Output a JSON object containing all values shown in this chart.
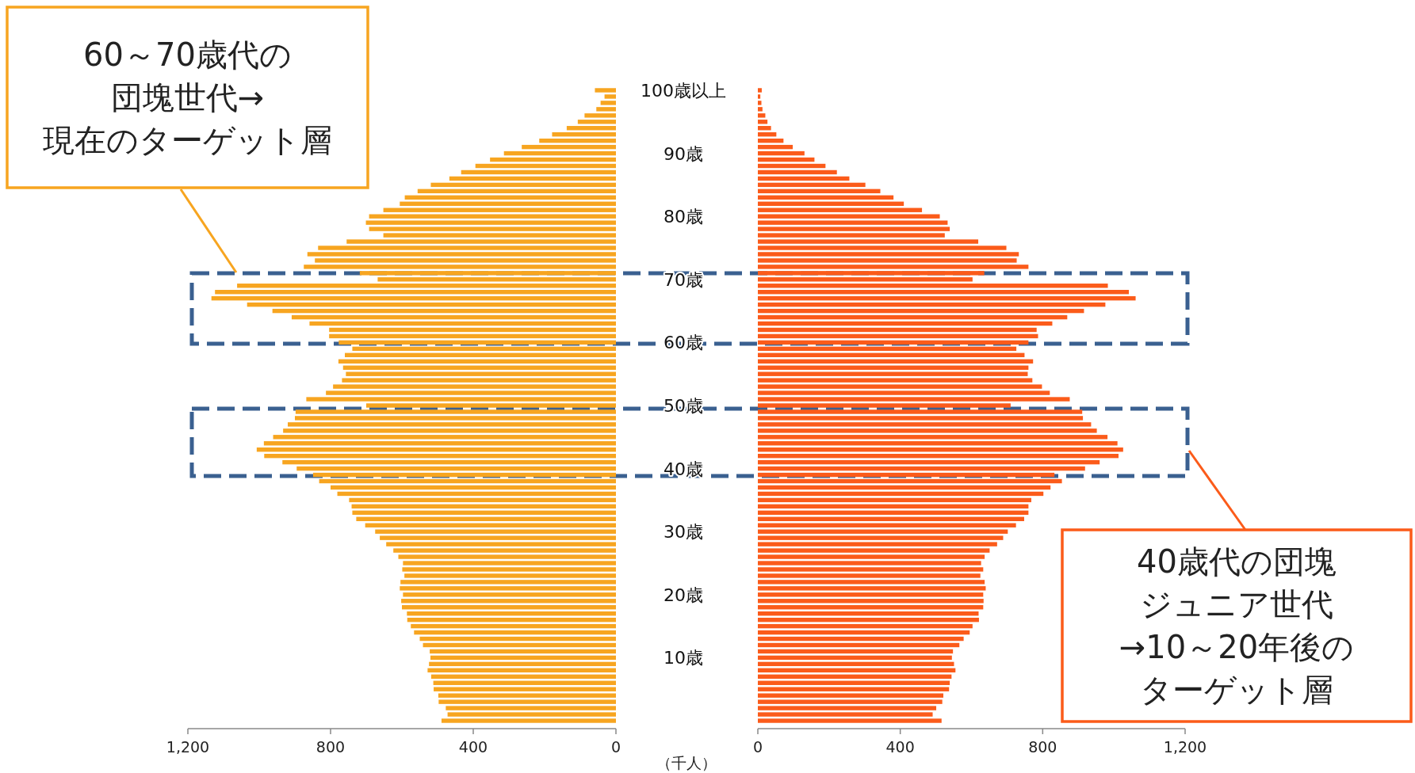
{
  "chart_data": [
    {
      "type": "bar",
      "orientation": "horizontal",
      "color": "#f7a520",
      "categories": [
        "100歳以上",
        null,
        null,
        null,
        null,
        null,
        null,
        null,
        null,
        null,
        "90歳",
        null,
        null,
        null,
        null,
        null,
        null,
        null,
        null,
        null,
        "80歳",
        null,
        null,
        null,
        null,
        null,
        null,
        null,
        null,
        null,
        "70歳",
        null,
        null,
        null,
        null,
        null,
        null,
        null,
        null,
        null,
        "60歳",
        null,
        null,
        null,
        null,
        null,
        null,
        null,
        null,
        null,
        "50歳",
        null,
        null,
        null,
        null,
        null,
        null,
        null,
        null,
        null,
        "40歳",
        null,
        null,
        null,
        null,
        null,
        null,
        null,
        null,
        null,
        "30歳",
        null,
        null,
        null,
        null,
        null,
        null,
        null,
        null,
        null,
        "20歳",
        null,
        null,
        null,
        null,
        null,
        null,
        null,
        null,
        null,
        "10歳",
        null,
        null,
        null,
        null,
        null,
        null,
        null,
        null,
        null,
        null
      ],
      "values": [
        59,
        32,
        43,
        55,
        88,
        107,
        138,
        179,
        215,
        264,
        314,
        353,
        394,
        434,
        467,
        519,
        556,
        592,
        606,
        652,
        692,
        701,
        692,
        652,
        755,
        835,
        865,
        844,
        875,
        718,
        668,
        1062,
        1124,
        1134,
        1034,
        963,
        909,
        859,
        804,
        804,
        777,
        739,
        760,
        778,
        765,
        757,
        768,
        793,
        813,
        868,
        700,
        898,
        900,
        920,
        933,
        961,
        987,
        1007,
        986,
        935,
        895,
        849,
        832,
        800,
        781,
        748,
        741,
        739,
        728,
        703,
        675,
        662,
        644,
        624,
        610,
        597,
        599,
        593,
        604,
        606,
        597,
        602,
        600,
        586,
        585,
        575,
        566,
        550,
        541,
        522,
        520,
        524,
        528,
        518,
        512,
        511,
        498,
        497,
        477,
        472,
        489
      ],
      "xlim": [
        1200,
        0
      ],
      "xticks": [
        {
          "value": 1200,
          "label": "1,200"
        },
        800,
        400,
        0
      ],
      "xlabel": "（千人）",
      "annotations": [
        "60～70歳代の団塊世代→現在のターゲット層"
      ]
    },
    {
      "type": "bar",
      "orientation": "horizontal",
      "color": "#fb5b1a",
      "values": [
        11,
        7,
        10,
        13,
        21,
        27,
        37,
        52,
        72,
        98,
        131,
        159,
        190,
        222,
        257,
        302,
        344,
        381,
        410,
        461,
        511,
        533,
        539,
        525,
        619,
        698,
        733,
        727,
        760,
        636,
        603,
        983,
        1042,
        1061,
        976,
        916,
        869,
        827,
        783,
        787,
        760,
        726,
        749,
        773,
        760,
        758,
        771,
        798,
        820,
        876,
        710,
        911,
        913,
        936,
        952,
        982,
        1010,
        1026,
        1013,
        960,
        919,
        833,
        854,
        822,
        802,
        768,
        760,
        760,
        748,
        725,
        702,
        689,
        672,
        651,
        637,
        627,
        633,
        625,
        637,
        640,
        633,
        634,
        633,
        620,
        621,
        603,
        595,
        578,
        566,
        548,
        545,
        551,
        555,
        544,
        539,
        537,
        521,
        518,
        501,
        491,
        516
      ],
      "xlim": [
        0,
        1200
      ],
      "xticks": [
        0,
        400,
        800,
        {
          "value": 1200,
          "label": "1,200"
        }
      ],
      "annotations": [
        "40歳代の団塊ジュニア世代→10～20年後のターゲット層"
      ]
    }
  ]
}
